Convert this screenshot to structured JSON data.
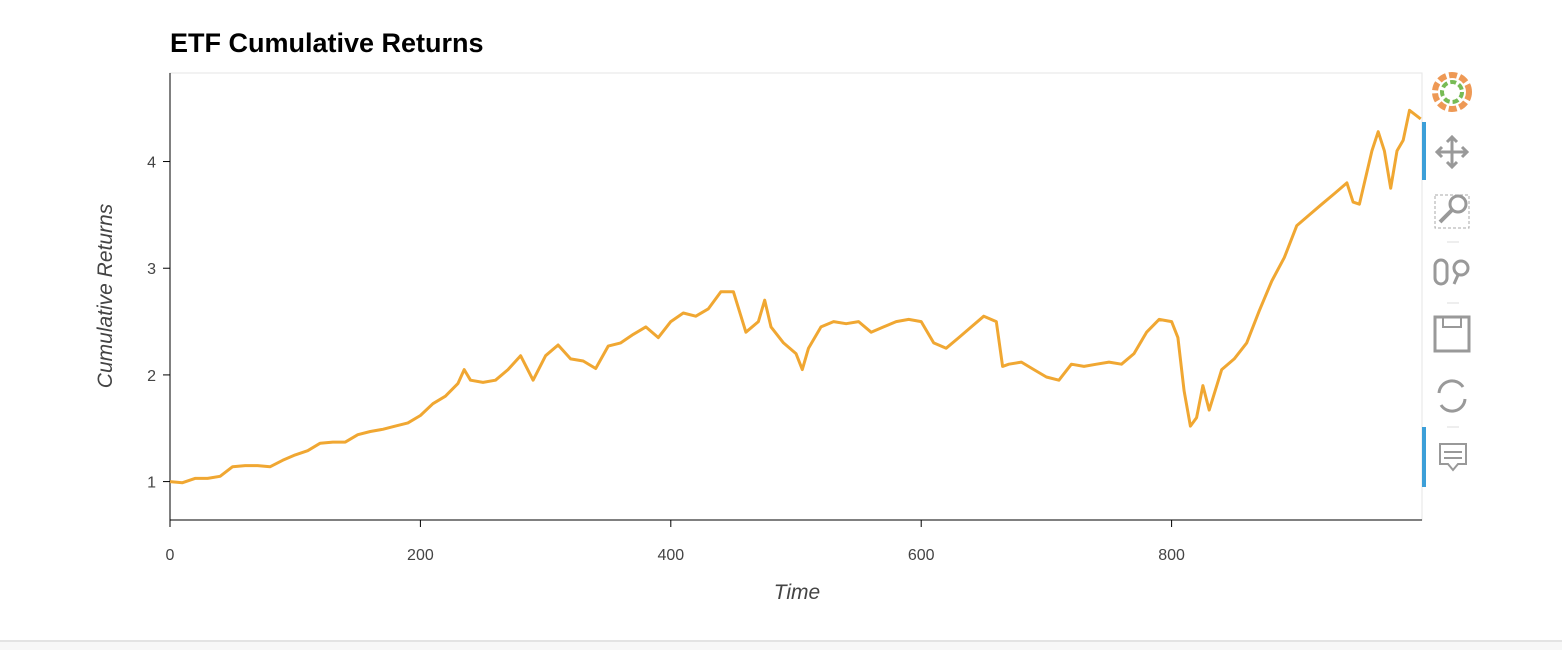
{
  "chart_data": {
    "type": "line",
    "title": "ETF Cumulative Returns",
    "x_label": "Time",
    "y_label": "Cumulative Returns",
    "x": [
      0,
      10,
      20,
      30,
      40,
      50,
      60,
      70,
      80,
      90,
      100,
      110,
      120,
      130,
      140,
      150,
      160,
      170,
      180,
      190,
      200,
      210,
      220,
      230,
      235,
      240,
      250,
      260,
      270,
      280,
      290,
      300,
      310,
      320,
      330,
      340,
      350,
      360,
      370,
      380,
      390,
      400,
      410,
      420,
      430,
      440,
      450,
      460,
      470,
      475,
      480,
      490,
      500,
      505,
      510,
      520,
      530,
      540,
      550,
      560,
      570,
      580,
      590,
      600,
      610,
      620,
      630,
      640,
      650,
      660,
      665,
      670,
      680,
      690,
      700,
      710,
      720,
      730,
      740,
      750,
      760,
      770,
      780,
      790,
      800,
      805,
      810,
      815,
      820,
      825,
      830,
      840,
      850,
      860,
      870,
      880,
      890,
      900,
      910,
      920,
      930,
      940,
      945,
      950,
      960,
      965,
      970,
      975,
      980,
      985,
      990,
      999
    ],
    "series": [
      {
        "name": "Cumulative Returns",
        "color": "#f0a732",
        "values": [
          1.0,
          0.99,
          1.03,
          1.03,
          1.05,
          1.14,
          1.15,
          1.15,
          1.14,
          1.2,
          1.25,
          1.29,
          1.36,
          1.37,
          1.37,
          1.44,
          1.47,
          1.49,
          1.52,
          1.55,
          1.62,
          1.73,
          1.8,
          1.92,
          2.05,
          1.95,
          1.93,
          1.95,
          2.05,
          2.18,
          1.95,
          2.18,
          2.28,
          2.15,
          2.13,
          2.06,
          2.27,
          2.3,
          2.38,
          2.45,
          2.35,
          2.5,
          2.58,
          2.55,
          2.62,
          2.78,
          2.78,
          2.4,
          2.5,
          2.7,
          2.45,
          2.3,
          2.2,
          2.05,
          2.25,
          2.45,
          2.5,
          2.48,
          2.5,
          2.4,
          2.45,
          2.5,
          2.52,
          2.5,
          2.3,
          2.25,
          2.35,
          2.45,
          2.55,
          2.5,
          2.08,
          2.1,
          2.12,
          2.05,
          1.98,
          1.95,
          2.1,
          2.08,
          2.1,
          2.12,
          2.1,
          2.2,
          2.4,
          2.52,
          2.5,
          2.35,
          1.85,
          1.52,
          1.6,
          1.9,
          1.67,
          2.05,
          2.15,
          2.3,
          2.6,
          2.88,
          3.1,
          3.4,
          3.5,
          3.6,
          3.7,
          3.8,
          3.62,
          3.6,
          4.1,
          4.28,
          4.1,
          3.75,
          4.1,
          4.2,
          4.48,
          4.4
        ]
      }
    ],
    "xlim": [
      0,
      1000
    ],
    "ylim": [
      0.64,
      4.83
    ],
    "xticks": [
      0,
      200,
      400,
      600,
      800
    ],
    "yticks": [
      1,
      2,
      3,
      4
    ]
  }
}
